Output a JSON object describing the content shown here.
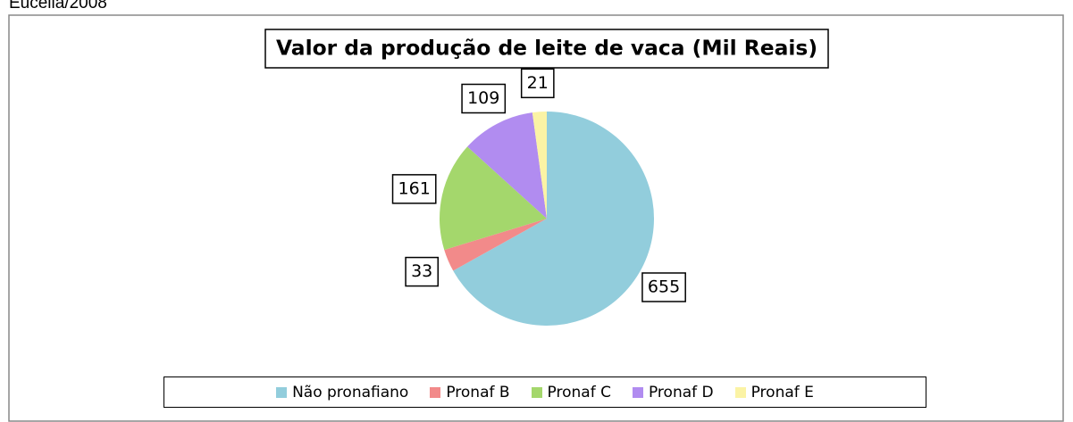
{
  "caption": "Eucelia/2008",
  "chart_data": {
    "type": "pie",
    "title": "Valor da produção de leite de vaca (Mil Reais)",
    "categories": [
      "Não pronafiano",
      "Pronaf B",
      "Pronaf C",
      "Pronaf D",
      "Pronaf E"
    ],
    "values": [
      655,
      33,
      161,
      109,
      21
    ],
    "colors": [
      "#92cddc",
      "#f28a8a",
      "#a4d76c",
      "#b18cf0",
      "#fbf3a5"
    ],
    "legend": "bottom"
  }
}
